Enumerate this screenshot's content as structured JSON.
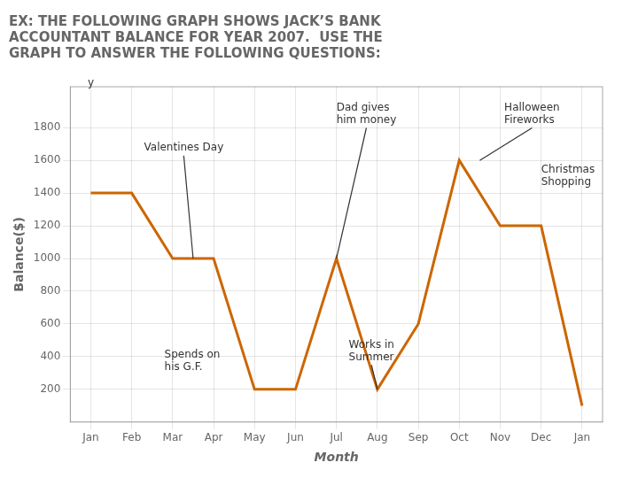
{
  "chart_data": {
    "type": "line",
    "title": "EX: THE FOLLOWING GRAPH SHOWS JACK’S BANK\nACCOUNTANT BALANCE FOR YEAR 2007.  USE THE\nGRAPH TO ANSWER THE FOLLOWING QUESTIONS:",
    "xlabel": "Month",
    "ylabel": "Balance($)",
    "categories": [
      "Jan",
      "Feb",
      "Mar",
      "Apr",
      "May",
      "Jun",
      "Jul",
      "Aug",
      "Sep",
      "Oct",
      "Nov",
      "Dec",
      "Jan"
    ],
    "values": [
      1400,
      1400,
      1000,
      1000,
      200,
      200,
      1000,
      200,
      600,
      1600,
      1200,
      1200,
      100
    ],
    "color": "#CC6600",
    "ylim": [
      0,
      2050
    ],
    "yticks": [
      200,
      400,
      600,
      800,
      1000,
      1200,
      1400,
      1600,
      1800
    ],
    "grid": true,
    "annotations": [
      "Valentines Day",
      "Spends on\nhis G.F.",
      "Works in\nSummer",
      "Dad gives\nhim money",
      "Halloween\nFireworks",
      "Christmas\nShopping",
      "y"
    ]
  }
}
